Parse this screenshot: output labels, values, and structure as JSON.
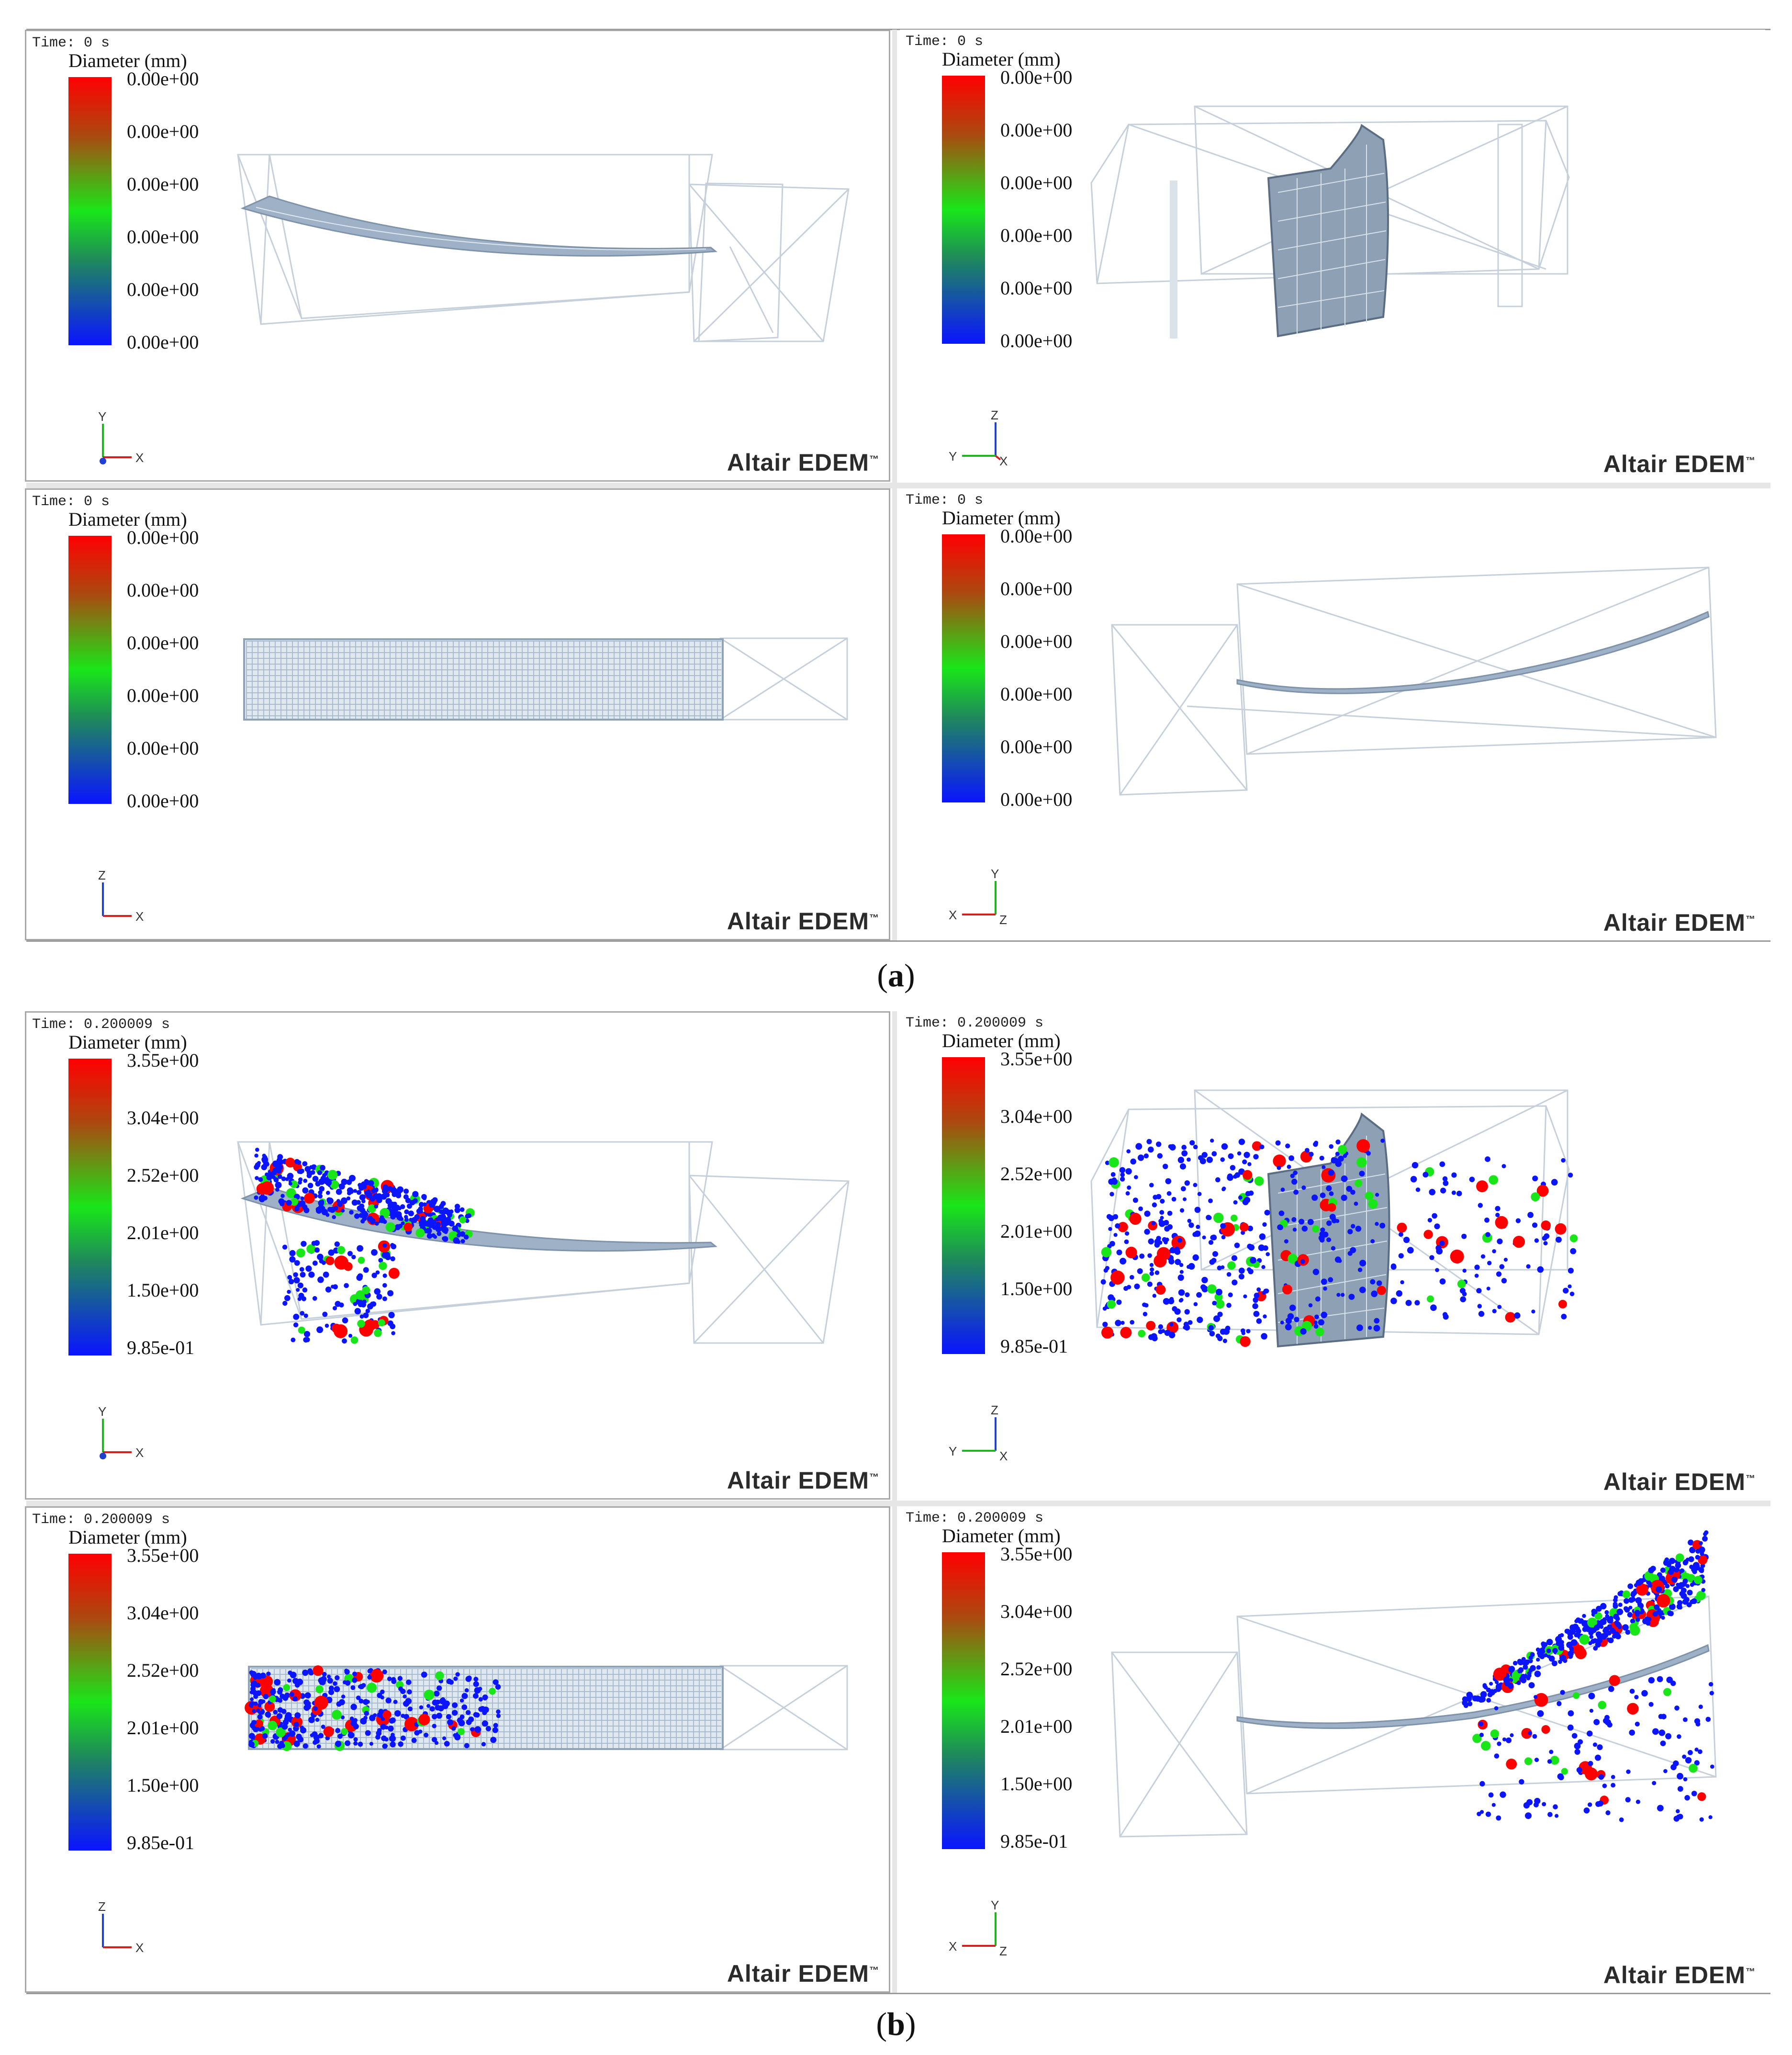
{
  "figure": {
    "brand": "Altair EDEM",
    "brand_mark": "™",
    "colorbar_title": "Diameter (mm)",
    "axis_labels": [
      "X",
      "Y",
      "Z"
    ],
    "part_a": {
      "caption_open": "(",
      "caption_letter": "a",
      "caption_close": ")",
      "time": "Time: 0 s",
      "ticks": [
        "0.00e+00",
        "0.00e+00",
        "0.00e+00",
        "0.00e+00",
        "0.00e+00",
        "0.00e+00"
      ]
    },
    "part_b": {
      "caption_open": "(",
      "caption_letter": "b",
      "caption_close": ")",
      "time": "Time: 0.200009 s",
      "ticks": [
        "3.55e+00",
        "3.04e+00",
        "2.52e+00",
        "2.01e+00",
        "1.50e+00",
        "9.85e-01"
      ]
    },
    "colors": {
      "red": "#ff0000",
      "green": "#19e619",
      "blue": "#0a14ff",
      "mesh": "#a9bccf",
      "frame": "#c8d2dc"
    }
  }
}
